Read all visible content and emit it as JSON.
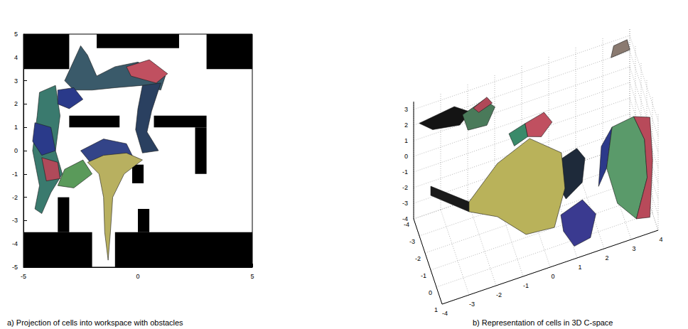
{
  "chart_data": [
    {
      "type": "region_map",
      "title": "a) Projection of cells into workspace with obstacles",
      "xlim": [
        -5,
        5
      ],
      "ylim": [
        -5,
        5
      ],
      "xticks": [
        -5,
        0,
        5
      ],
      "yticks": [
        -5,
        -4,
        -3,
        -2,
        -1,
        0,
        1,
        2,
        3,
        4,
        5
      ],
      "obstacle_color": "#000000",
      "obstacles": [
        [
          -5,
          3.5,
          -3,
          5
        ],
        [
          -1.8,
          4.4,
          1.8,
          5
        ],
        [
          3,
          3.5,
          5,
          5
        ],
        [
          -3,
          1,
          -0.8,
          1.5
        ],
        [
          0.7,
          1,
          3,
          1.5
        ],
        [
          2.5,
          -1,
          3,
          1
        ],
        [
          -0.25,
          -1.4,
          0.25,
          -0.6
        ],
        [
          -3.5,
          -3.5,
          -3,
          -2
        ],
        [
          0,
          -3.5,
          0.5,
          -2.5
        ],
        [
          -5,
          -5,
          -2,
          -3.5
        ],
        [
          -1,
          -5,
          5,
          -3.5
        ]
      ],
      "cells": [
        {
          "color": "#3a7a6e",
          "polygon": [
            [
              -4.3,
              2.5
            ],
            [
              -3.6,
              2.8
            ],
            [
              -3.4,
              1.5
            ],
            [
              -3.6,
              0
            ],
            [
              -3.3,
              -1
            ],
            [
              -3.8,
              -1.8
            ],
            [
              -4.2,
              -2.7
            ],
            [
              -4.5,
              -2.5
            ],
            [
              -4.3,
              -1.5
            ],
            [
              -4.6,
              0
            ],
            [
              -4.4,
              1.5
            ]
          ]
        },
        {
          "color": "#2a3a8a",
          "polygon": [
            [
              -4.5,
              1.2
            ],
            [
              -3.8,
              1.0
            ],
            [
              -3.6,
              0
            ],
            [
              -4.2,
              -0.2
            ],
            [
              -4.6,
              0.4
            ]
          ]
        },
        {
          "color": "#b04a5a",
          "polygon": [
            [
              -4.2,
              -0.3
            ],
            [
              -3.5,
              -0.5
            ],
            [
              -3.4,
              -1.2
            ],
            [
              -4.0,
              -1.3
            ]
          ]
        },
        {
          "color": "#3a5a6a",
          "polygon": [
            [
              -3.2,
              3.0
            ],
            [
              -2.5,
              4.5
            ],
            [
              -2.2,
              4.1
            ],
            [
              -1.8,
              3.2
            ],
            [
              -1,
              3.6
            ],
            [
              0,
              3.8
            ],
            [
              1.2,
              3.2
            ],
            [
              1.0,
              2.6
            ],
            [
              0.2,
              2.8
            ],
            [
              -1,
              2.7
            ],
            [
              -2,
              2.6
            ],
            [
              -2.8,
              2.6
            ]
          ]
        },
        {
          "color": "#c05060",
          "polygon": [
            [
              -0.5,
              3.6
            ],
            [
              0.5,
              3.9
            ],
            [
              1.3,
              3.3
            ],
            [
              0.8,
              2.9
            ],
            [
              -0.3,
              3.2
            ]
          ]
        },
        {
          "color": "#2a3a8a",
          "polygon": [
            [
              -3.5,
              2.6
            ],
            [
              -2.8,
              2.7
            ],
            [
              -2.4,
              2.2
            ],
            [
              -3.0,
              1.8
            ],
            [
              -3.5,
              2.0
            ]
          ]
        },
        {
          "color": "#2a4060",
          "polygon": [
            [
              0.2,
              2.8
            ],
            [
              1.0,
              2.9
            ],
            [
              0.6,
              1.7
            ],
            [
              0.4,
              0.8
            ],
            [
              0.9,
              0
            ],
            [
              0.2,
              -0.1
            ],
            [
              -0.1,
              0.9
            ],
            [
              0.0,
              1.8
            ]
          ]
        },
        {
          "color": "#5a9a5a",
          "polygon": [
            [
              -3.2,
              -0.8
            ],
            [
              -2.4,
              -0.4
            ],
            [
              -2.0,
              -1
            ],
            [
              -2.8,
              -1.6
            ],
            [
              -3.5,
              -1.5
            ]
          ]
        },
        {
          "color": "#334488",
          "polygon": [
            [
              -2.5,
              0
            ],
            [
              -1.5,
              0.5
            ],
            [
              -0.5,
              0.3
            ],
            [
              -0.2,
              -0.3
            ],
            [
              -1,
              -0.3
            ],
            [
              -2,
              -0.6
            ]
          ]
        },
        {
          "color": "#b8b060",
          "polygon": [
            [
              -2.2,
              -0.5
            ],
            [
              -1.5,
              -0.2
            ],
            [
              -0.5,
              -0.1
            ],
            [
              0.2,
              -0.4
            ],
            [
              -0.6,
              -1
            ],
            [
              -1.1,
              -2
            ],
            [
              -1.2,
              -3.5
            ],
            [
              -1.3,
              -4.7
            ],
            [
              -1.45,
              -3.5
            ],
            [
              -1.5,
              -2
            ],
            [
              -1.7,
              -1
            ]
          ]
        }
      ]
    },
    {
      "type": "surface3d",
      "title": "b) Representation of cells in 3D C-space",
      "xlim": [
        -4,
        1
      ],
      "ylim": [
        -4,
        4
      ],
      "zlim": [
        -4,
        3.5
      ],
      "xticks": [
        -4,
        -3,
        -2,
        -1,
        0,
        1
      ],
      "yticks": [
        -4,
        -3,
        -2,
        -1,
        0,
        1,
        2,
        3,
        4
      ],
      "zticks": [
        -4,
        -3,
        -2,
        -1,
        0,
        1,
        2,
        3
      ],
      "grid": true,
      "cells": [
        {
          "color": "#141414",
          "polygon": [
            [
              -3.5,
              -3.9,
              2.6
            ],
            [
              -3.5,
              -2.6,
              2.9
            ],
            [
              -3.5,
              -2.0,
              2.2
            ],
            [
              -3.5,
              -2.4,
              1.6
            ],
            [
              -3.5,
              -3.4,
              1.9
            ]
          ]
        },
        {
          "color": "#4a7a5a",
          "polygon": [
            [
              -3,
              -2.4,
              2.8
            ],
            [
              -3,
              -1.6,
              3.3
            ],
            [
              -3,
              -1.2,
              2.6
            ],
            [
              -3,
              -1.5,
              1.6
            ],
            [
              -3,
              -2.2,
              1.7
            ]
          ]
        },
        {
          "color": "#b04858",
          "polygon": [
            [
              -3,
              -2.0,
              3.0
            ],
            [
              -3,
              -1.5,
              3.4
            ],
            [
              -3,
              -1.3,
              2.9
            ],
            [
              -3,
              -1.8,
              2.6
            ]
          ]
        },
        {
          "color": "#8a7a70",
          "polygon": [
            [
              -3.5,
              3.2,
              2.6
            ],
            [
              -3.5,
              3.9,
              2.7
            ],
            [
              -3.5,
              3.8,
              3.4
            ],
            [
              -3.5,
              3.3,
              3.3
            ]
          ]
        },
        {
          "color": "#3a8a6a",
          "polygon": [
            [
              -1.5,
              -1.0,
              2.4
            ],
            [
              -1.5,
              -0.4,
              2.7
            ],
            [
              -1.5,
              -0.3,
              1.8
            ],
            [
              -1.5,
              -0.8,
              1.5
            ]
          ]
        },
        {
          "color": "#c05060",
          "polygon": [
            [
              -1.5,
              -0.4,
              2.7
            ],
            [
              -1.5,
              0.3,
              3.0
            ],
            [
              -1.5,
              0.6,
              2.2
            ],
            [
              -1.5,
              0.2,
              1.5
            ],
            [
              -1.5,
              -0.3,
              1.8
            ]
          ]
        },
        {
          "color": "#1e2a3a",
          "polygon": [
            [
              0,
              0.5,
              1.4
            ],
            [
              0,
              1.2,
              1.8
            ],
            [
              0,
              1.5,
              1.0
            ],
            [
              0,
              1.4,
              -0.5
            ],
            [
              0,
              0.8,
              -1.2
            ],
            [
              0,
              0.4,
              0.2
            ]
          ]
        },
        {
          "color": "#1a1a1a",
          "polygon": [
            [
              -1,
              -4,
              1.36
            ],
            [
              -1,
              -2.58,
              -0.48
            ],
            [
              -1,
              -2.58,
              -1.11
            ],
            [
              -1,
              -4,
              0.77
            ]
          ]
        },
        {
          "color": "#b9b25a",
          "polygon": [
            [
              -1,
              -2.58,
              -0.48
            ],
            [
              -1,
              -1.53,
              1.36
            ],
            [
              -1,
              -0.34,
              2.25
            ],
            [
              -1,
              0.84,
              0.64
            ],
            [
              -1,
              0.97,
              -1.71
            ],
            [
              -1,
              0.58,
              -3.98
            ],
            [
              -1,
              -0.47,
              -3.81
            ],
            [
              -1,
              -1.53,
              -2.05
            ],
            [
              -1,
              -2.58,
              -1.11
            ]
          ]
        },
        {
          "color": "#3a3a90",
          "polygon": [
            [
              0.5,
              0.5,
              -1.5
            ],
            [
              0.5,
              1.3,
              -1.0
            ],
            [
              0.5,
              1.8,
              -2.2
            ],
            [
              0.5,
              1.6,
              -3.6
            ],
            [
              0.5,
              1.0,
              -3.8
            ],
            [
              0.5,
              0.6,
              -2.6
            ]
          ]
        },
        {
          "color": "#2c3a8a",
          "polygon": [
            [
              0.5,
              2.0,
              2.0
            ],
            [
              0.5,
              2.4,
              3.0
            ],
            [
              0.5,
              2.2,
              0.5
            ],
            [
              0.5,
              1.9,
              -0.5
            ]
          ]
        },
        {
          "color": "#5a9a6a",
          "polygon": [
            [
              0.5,
              2.4,
              3.0
            ],
            [
              0.5,
              3.2,
              3.2
            ],
            [
              0.5,
              3.6,
              1.5
            ],
            [
              0.5,
              3.7,
              -1.0
            ],
            [
              0.5,
              3.3,
              -3.4
            ],
            [
              0.5,
              2.6,
              -2.0
            ],
            [
              0.5,
              2.2,
              0.5
            ]
          ]
        },
        {
          "color": "#b84a5a",
          "polygon": [
            [
              0.5,
              3.2,
              3.2
            ],
            [
              0.5,
              3.8,
              2.8
            ],
            [
              0.5,
              3.9,
              0
            ],
            [
              0.5,
              3.8,
              -3.6
            ],
            [
              0.5,
              3.3,
              -3.4
            ],
            [
              0.5,
              3.7,
              -1.0
            ],
            [
              0.5,
              3.6,
              1.5
            ]
          ]
        }
      ]
    }
  ]
}
